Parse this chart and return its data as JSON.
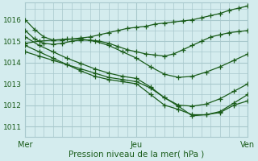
{
  "title": "Pression niveau de la mer( hPa )",
  "bg_color": "#d4ecee",
  "grid_color": "#a8c8cc",
  "line_color": "#1a5c1a",
  "marker": "+",
  "markersize": 4,
  "linewidth": 0.9,
  "ylim": [
    1010.5,
    1016.8
  ],
  "yticks": [
    1011,
    1012,
    1013,
    1014,
    1015,
    1016
  ],
  "xlim": [
    0,
    48
  ],
  "xtick_positions": [
    0,
    24,
    48
  ],
  "xtick_labels": [
    "Mer",
    "Jeu",
    "Ven"
  ],
  "series": [
    {
      "x": [
        0,
        2,
        4,
        6,
        8,
        10,
        12,
        14,
        16,
        18,
        20,
        22,
        24,
        26,
        28,
        30,
        32,
        34,
        36,
        38,
        40,
        42,
        44,
        46,
        48
      ],
      "y": [
        1016.0,
        1015.55,
        1015.2,
        1015.05,
        1015.05,
        1015.1,
        1015.15,
        1015.2,
        1015.3,
        1015.4,
        1015.5,
        1015.6,
        1015.65,
        1015.7,
        1015.8,
        1015.85,
        1015.9,
        1015.95,
        1016.0,
        1016.1,
        1016.2,
        1016.3,
        1016.45,
        1016.55,
        1016.65
      ]
    },
    {
      "x": [
        0,
        2,
        4,
        6,
        8,
        10,
        12,
        14,
        16,
        18,
        20,
        22,
        24,
        26,
        28,
        30,
        32,
        34,
        36,
        38,
        40,
        42,
        44,
        46,
        48
      ],
      "y": [
        1015.5,
        1015.1,
        1014.9,
        1014.85,
        1014.9,
        1015.0,
        1015.05,
        1015.05,
        1015.0,
        1014.9,
        1014.75,
        1014.6,
        1014.5,
        1014.4,
        1014.35,
        1014.3,
        1014.4,
        1014.6,
        1014.8,
        1015.0,
        1015.2,
        1015.3,
        1015.4,
        1015.45,
        1015.5
      ]
    },
    {
      "x": [
        0,
        3,
        6,
        9,
        12,
        15,
        18,
        21,
        24,
        27,
        30,
        33,
        36,
        39,
        42,
        45,
        48
      ],
      "y": [
        1014.9,
        1015.0,
        1015.05,
        1015.1,
        1015.1,
        1015.0,
        1014.8,
        1014.5,
        1014.2,
        1013.8,
        1013.45,
        1013.3,
        1013.35,
        1013.55,
        1013.8,
        1014.1,
        1014.4
      ]
    },
    {
      "x": [
        0,
        3,
        6,
        9,
        12,
        15,
        18,
        21,
        24,
        27,
        30,
        33,
        36,
        39,
        42,
        45,
        48
      ],
      "y": [
        1014.5,
        1014.3,
        1014.1,
        1013.9,
        1013.7,
        1013.5,
        1013.3,
        1013.2,
        1013.1,
        1012.8,
        1012.35,
        1011.95,
        1011.5,
        1011.55,
        1011.65,
        1012.0,
        1012.2
      ]
    },
    {
      "x": [
        0,
        3,
        6,
        9,
        12,
        15,
        18,
        21,
        24,
        27,
        30,
        33,
        36,
        39,
        42,
        45,
        48
      ],
      "y": [
        1014.8,
        1014.5,
        1014.2,
        1013.9,
        1013.6,
        1013.35,
        1013.2,
        1013.1,
        1013.0,
        1012.5,
        1012.0,
        1011.8,
        1011.55,
        1011.55,
        1011.7,
        1012.1,
        1012.5
      ]
    },
    {
      "x": [
        0,
        3,
        6,
        9,
        12,
        15,
        18,
        21,
        24,
        27,
        30,
        33,
        36,
        39,
        42,
        45,
        48
      ],
      "y": [
        1015.2,
        1014.8,
        1014.5,
        1014.2,
        1013.95,
        1013.7,
        1013.5,
        1013.35,
        1013.25,
        1012.85,
        1012.35,
        1012.0,
        1011.95,
        1012.05,
        1012.3,
        1012.65,
        1013.0
      ]
    }
  ]
}
